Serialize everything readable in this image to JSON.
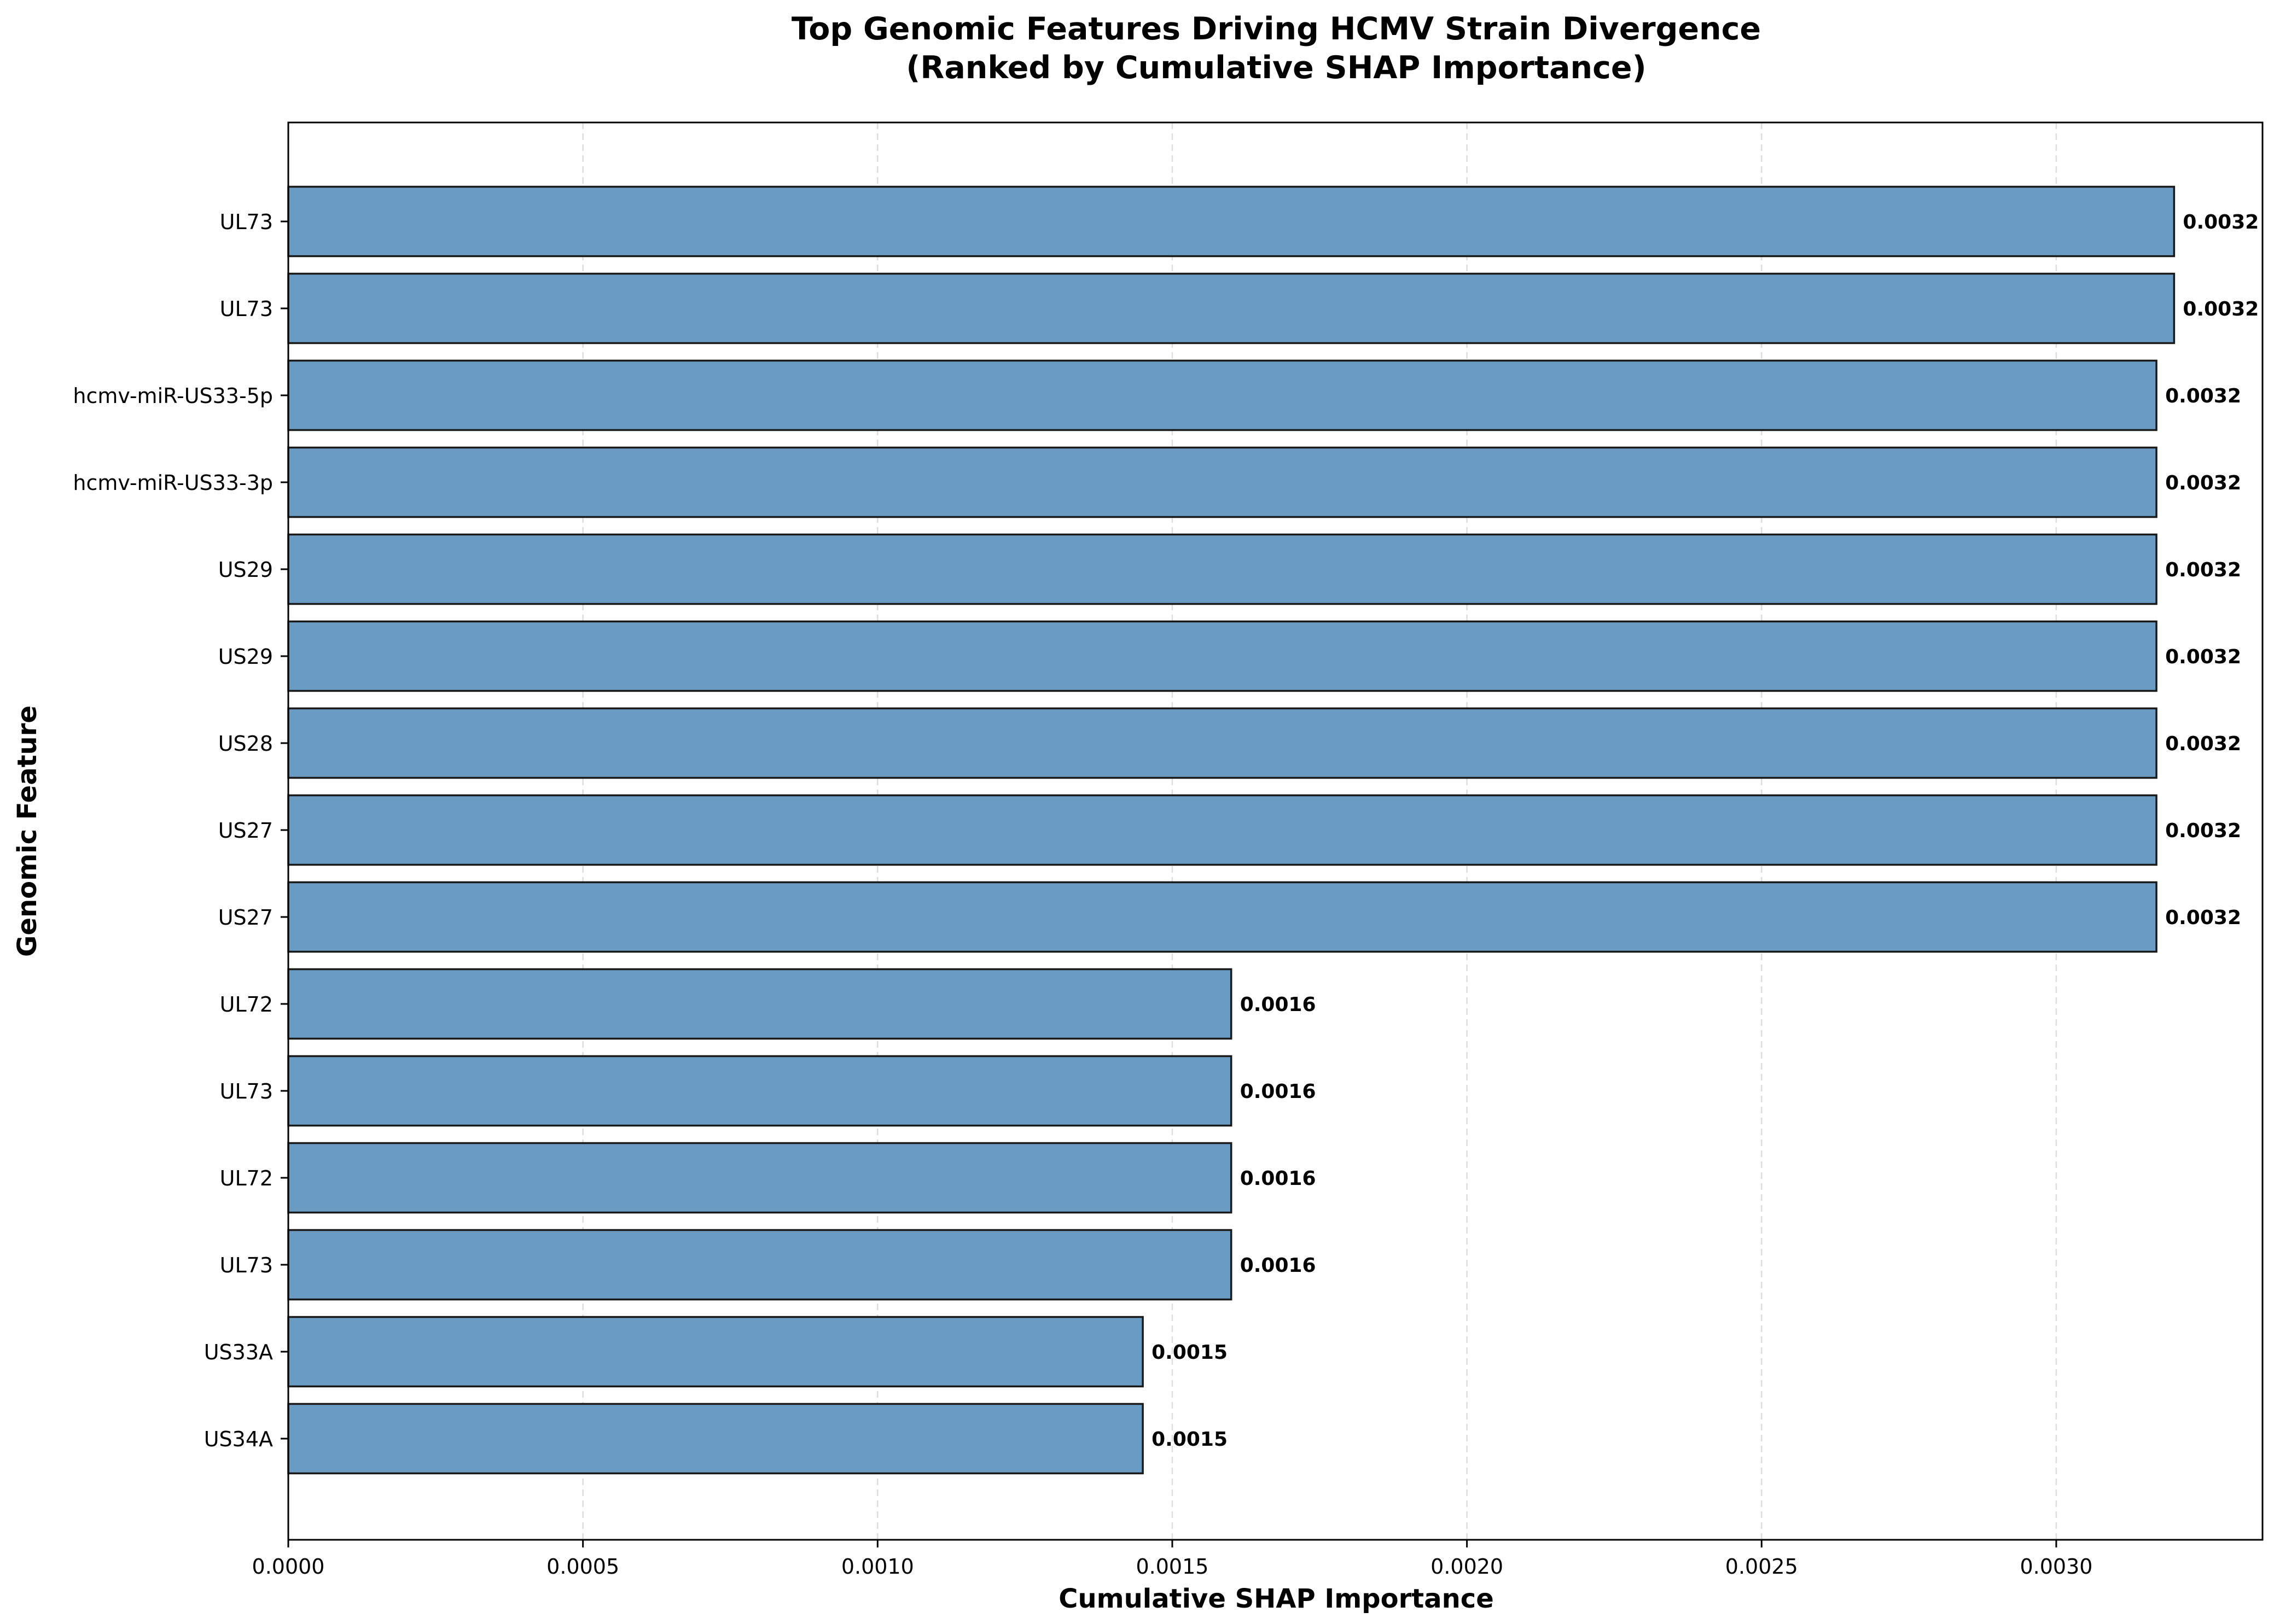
{
  "chart_data": {
    "type": "bar",
    "orientation": "horizontal",
    "title": "Top Genomic Features Driving HCMV Strain Divergence",
    "subtitle": "(Ranked by Cumulative SHAP Importance)",
    "xlabel": "Cumulative SHAP Importance",
    "ylabel": "Genomic Feature",
    "xlim": [
      0,
      0.00335
    ],
    "xticks": [
      "0.0000",
      "0.0005",
      "0.0010",
      "0.0015",
      "0.0020",
      "0.0025",
      "0.0030"
    ],
    "grid": "x-dashed",
    "bar_color": "#6a9bc3",
    "edge_color": "#1a1a1a",
    "categories": [
      "UL73",
      "UL73",
      "hcmv-miR-US33-5p",
      "hcmv-miR-US33-3p",
      "US29",
      "US29",
      "US28",
      "US27",
      "US27",
      "UL72",
      "UL73",
      "UL72",
      "UL73",
      "US33A",
      "US34A"
    ],
    "values": [
      0.0032,
      0.0032,
      0.00317,
      0.00317,
      0.00317,
      0.00317,
      0.00317,
      0.00317,
      0.00317,
      0.0016,
      0.0016,
      0.0016,
      0.0016,
      0.00145,
      0.00145
    ],
    "value_labels": [
      "0.0032",
      "0.0032",
      "0.0032",
      "0.0032",
      "0.0032",
      "0.0032",
      "0.0032",
      "0.0032",
      "0.0032",
      "0.0016",
      "0.0016",
      "0.0016",
      "0.0016",
      "0.0015",
      "0.0015"
    ]
  }
}
